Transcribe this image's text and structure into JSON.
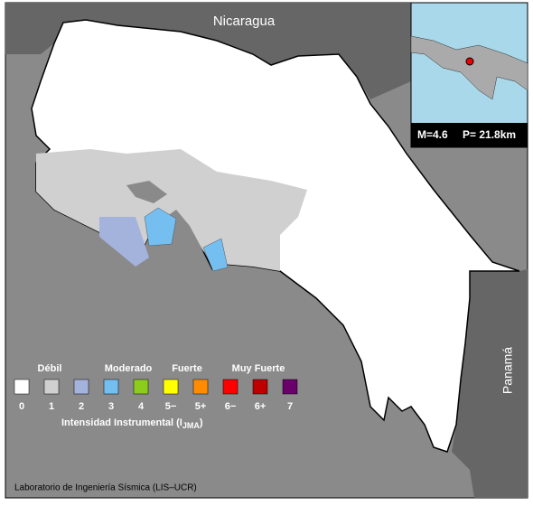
{
  "map": {
    "labels": [
      "Nicaragua",
      "Panamá"
    ]
  },
  "inset": {
    "magnitude": "M=4.6",
    "depth": "P= 21.8km"
  },
  "legend": {
    "groups": [
      "Débil",
      "Moderado",
      "Fuerte",
      "Muy Fuerte"
    ],
    "levels": [
      {
        "label": "0",
        "color": "#ffffff"
      },
      {
        "label": "1",
        "color": "#d0d0d0"
      },
      {
        "label": "2",
        "color": "#a3b3dc"
      },
      {
        "label": "3",
        "color": "#74bff0"
      },
      {
        "label": "4",
        "color": "#8ccc1c"
      },
      {
        "label": "5−",
        "color": "#ffff00"
      },
      {
        "label": "5+",
        "color": "#ff8c00"
      },
      {
        "label": "6−",
        "color": "#ff0000"
      },
      {
        "label": "6+",
        "color": "#c00000"
      },
      {
        "label": "7",
        "color": "#6a006a"
      }
    ],
    "title_main": "Intensidad Instrumental (I",
    "title_sub": "JMA",
    "title_end": ")"
  },
  "credit": "Laboratorio de Ingeniería Sísmica (LIS–UCR)"
}
